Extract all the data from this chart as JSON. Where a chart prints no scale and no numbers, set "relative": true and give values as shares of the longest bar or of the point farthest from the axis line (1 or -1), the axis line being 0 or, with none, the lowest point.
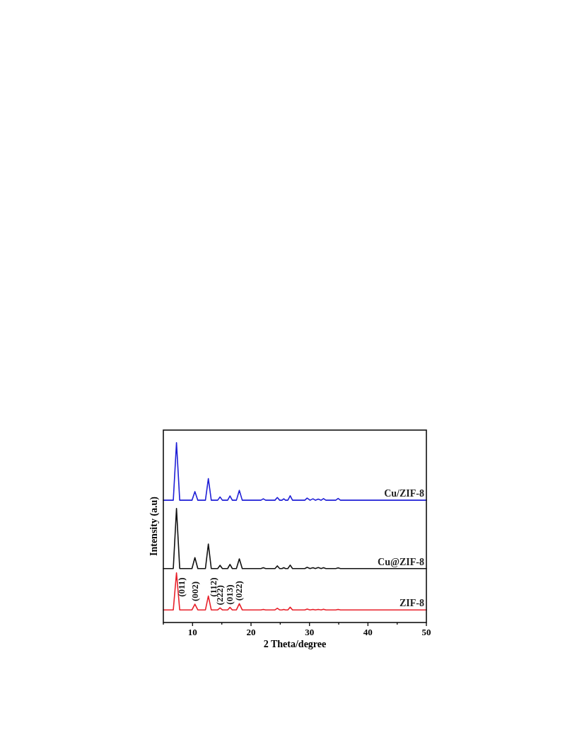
{
  "chart_data": {
    "type": "line",
    "relative": true,
    "xlabel": "2 Theta/degree",
    "ylabel": "Intensity (a.u)",
    "xlim": [
      5,
      50
    ],
    "xticks": [
      {
        "value": 5,
        "label": null
      },
      10,
      {
        "value": 15,
        "label": null
      },
      20,
      {
        "value": 25,
        "label": null
      },
      30,
      {
        "value": 35,
        "label": null
      },
      40,
      {
        "value": 45,
        "label": null
      },
      50
    ],
    "tick_labels": "x",
    "legend": false,
    "grid": false,
    "marker": "none",
    "line_style": "solid",
    "x": [
      5,
      6.7,
      7.25,
      7.8,
      9.9,
      10.4,
      10.9,
      12.2,
      12.7,
      13.2,
      14.3,
      14.7,
      15.1,
      16.0,
      16.4,
      16.8,
      17.5,
      18.0,
      18.5,
      21.7,
      22.1,
      22.5,
      24.1,
      24.5,
      24.9,
      25.3,
      25.6,
      25.9,
      26.3,
      26.7,
      27.1,
      29.2,
      29.6,
      30.1,
      30.6,
      31.0,
      31.5,
      32.0,
      32.4,
      32.8,
      34.5,
      34.9,
      35.3,
      50
    ],
    "series": [
      {
        "name": "Cu/ZIF-8",
        "color": "#1f1fd6",
        "values": [
          0.68,
          0.68,
          1.0,
          0.68,
          0.68,
          0.728,
          0.68,
          0.68,
          0.8,
          0.68,
          0.68,
          0.698,
          0.68,
          0.68,
          0.704,
          0.68,
          0.68,
          0.735,
          0.68,
          0.68,
          0.688,
          0.68,
          0.68,
          0.695,
          0.68,
          0.68,
          0.688,
          0.68,
          0.68,
          0.705,
          0.68,
          0.68,
          0.692,
          0.68,
          0.688,
          0.68,
          0.686,
          0.68,
          0.689,
          0.68,
          0.68,
          0.69,
          0.68,
          0.68
        ]
      },
      {
        "name": "Cu@ZIF-8",
        "color": "#111111",
        "values": [
          0.3,
          0.3,
          0.634,
          0.3,
          0.3,
          0.361,
          0.3,
          0.3,
          0.436,
          0.3,
          0.3,
          0.318,
          0.3,
          0.3,
          0.323,
          0.3,
          0.3,
          0.354,
          0.3,
          0.3,
          0.305,
          0.3,
          0.3,
          0.315,
          0.3,
          0.3,
          0.305,
          0.3,
          0.3,
          0.319,
          0.3,
          0.3,
          0.307,
          0.3,
          0.305,
          0.3,
          0.306,
          0.3,
          0.305,
          0.3,
          0.3,
          0.304,
          0.3,
          0.3
        ]
      },
      {
        "name": "ZIF-8",
        "color": "#e8202a",
        "values": [
          0.07,
          0.07,
          0.276,
          0.07,
          0.07,
          0.102,
          0.07,
          0.07,
          0.147,
          0.07,
          0.07,
          0.081,
          0.07,
          0.07,
          0.084,
          0.07,
          0.07,
          0.105,
          0.07,
          0.07,
          0.073,
          0.07,
          0.07,
          0.079,
          0.07,
          0.07,
          0.073,
          0.07,
          0.07,
          0.085,
          0.07,
          0.07,
          0.075,
          0.07,
          0.073,
          0.07,
          0.073,
          0.07,
          0.074,
          0.07,
          0.07,
          0.073,
          0.07,
          0.07
        ]
      }
    ],
    "annotations": [
      {
        "text": "(011)",
        "x": 7.25,
        "y": 0.276
      },
      {
        "text": "(002)",
        "x": 10.4,
        "y": 0.102
      },
      {
        "text": "(112)",
        "x": 12.7,
        "y": 0.147
      },
      {
        "text": "(222)",
        "x": 14.7,
        "y": 0.081
      },
      {
        "text": "(013)",
        "x": 16.4,
        "y": 0.084
      },
      {
        "text": "(022)",
        "x": 18.0,
        "y": 0.105
      }
    ]
  }
}
